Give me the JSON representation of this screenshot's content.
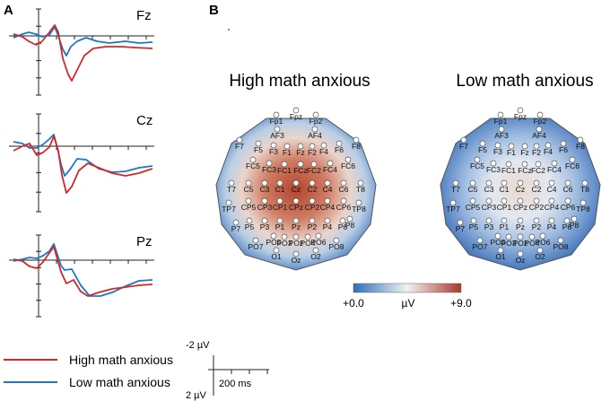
{
  "panel_a": {
    "label": "A",
    "channels": [
      {
        "name": "Fz"
      },
      {
        "name": "Cz"
      },
      {
        "name": "Pz"
      }
    ],
    "colors": {
      "high": "#d62728",
      "low": "#1f77c4"
    }
  },
  "legend": {
    "items": [
      {
        "label": "High math anxious",
        "color": "#d62728"
      },
      {
        "label": "Low math anxious",
        "color": "#1f77c4"
      }
    ]
  },
  "scale_bar": {
    "top_label": "-2 µV",
    "bottom_label": "2 µV",
    "time_label": "200 ms"
  },
  "panel_b": {
    "label": "B",
    "maps": [
      {
        "title": "High math anxious",
        "condition": "high"
      },
      {
        "title": "Low math anxious",
        "condition": "low"
      }
    ],
    "electrodes": [
      "Fp1",
      "Fpz",
      "Fp2",
      "AF3",
      "AF4",
      "F7",
      "F5",
      "F3",
      "F1",
      "Fz",
      "F2",
      "F4",
      "F6",
      "F8",
      "FC5",
      "FC3",
      "FC1",
      "FCz",
      "FC2",
      "FC4",
      "FC6",
      "T7",
      "C5",
      "C3",
      "C1",
      "Cz",
      "C2",
      "C4",
      "C6",
      "T8",
      "TP7",
      "CP5",
      "CP3",
      "CP1",
      "CPz",
      "CP2",
      "CP4",
      "CP6",
      "TP8",
      "P7",
      "P5",
      "P3",
      "P1",
      "Pz",
      "P2",
      "P4",
      "P6",
      "P8",
      "PO7",
      "PO5",
      "PO3",
      "POz",
      "PO4",
      "PO6",
      "PO8",
      "O1",
      "Oz",
      "O2"
    ],
    "colorbar": {
      "min_label": "+0.0",
      "unit_label": "µV",
      "max_label": "+9.0",
      "min_color": "#2f6db5",
      "mid_color": "#f2f2f2",
      "max_color": "#a8382a"
    }
  }
}
